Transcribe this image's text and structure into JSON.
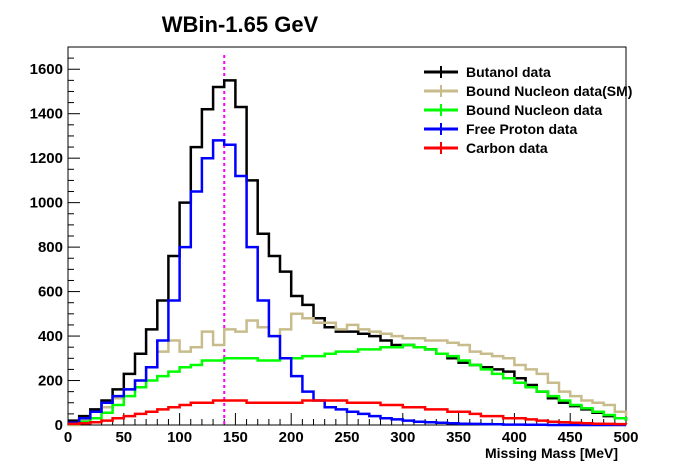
{
  "chart_data": {
    "type": "line",
    "title": "WBin-1.65 GeV",
    "xlabel": "Missing Mass [MeV]",
    "ylabel": "",
    "xlim": [
      0,
      500
    ],
    "ylim": [
      0,
      1700
    ],
    "x_ticks": [
      0,
      50,
      100,
      150,
      200,
      250,
      300,
      350,
      400,
      450,
      500
    ],
    "y_ticks": [
      0,
      200,
      400,
      600,
      800,
      1000,
      1200,
      1400,
      1600
    ],
    "grid": false,
    "legend_position": "top-right",
    "marker_line": {
      "x": 140,
      "color": "#ff00ff"
    },
    "x": [
      0,
      10,
      20,
      30,
      40,
      50,
      60,
      70,
      80,
      90,
      100,
      110,
      120,
      130,
      140,
      150,
      160,
      170,
      180,
      190,
      200,
      210,
      220,
      230,
      240,
      250,
      260,
      270,
      280,
      290,
      300,
      310,
      320,
      330,
      340,
      350,
      360,
      370,
      380,
      390,
      400,
      410,
      420,
      430,
      440,
      450,
      460,
      470,
      480,
      490,
      500
    ],
    "series": [
      {
        "name": "Butanol data",
        "color": "#000000",
        "values": [
          20,
          40,
          70,
          110,
          160,
          230,
          320,
          430,
          560,
          760,
          1000,
          1250,
          1420,
          1520,
          1550,
          1430,
          1100,
          860,
          760,
          690,
          580,
          540,
          480,
          440,
          420,
          420,
          410,
          400,
          380,
          360,
          360,
          350,
          340,
          320,
          300,
          280,
          270,
          260,
          250,
          240,
          210,
          180,
          150,
          120,
          100,
          85,
          70,
          55,
          40,
          30,
          20
        ]
      },
      {
        "name": "Bound Nucleon data(SM)",
        "color": "#c8bc8c",
        "values": [
          0,
          20,
          60,
          80,
          120,
          160,
          200,
          260,
          330,
          380,
          330,
          350,
          420,
          360,
          430,
          420,
          470,
          440,
          400,
          430,
          500,
          480,
          460,
          460,
          430,
          450,
          430,
          420,
          410,
          400,
          390,
          390,
          380,
          380,
          370,
          360,
          330,
          320,
          310,
          300,
          270,
          250,
          230,
          190,
          150,
          130,
          110,
          100,
          90,
          60,
          40
        ]
      },
      {
        "name": "Bound Nucleon data",
        "color": "#00ff00",
        "values": [
          5,
          15,
          30,
          55,
          90,
          130,
          170,
          200,
          220,
          240,
          260,
          270,
          290,
          290,
          300,
          300,
          300,
          290,
          290,
          300,
          300,
          310,
          310,
          320,
          330,
          330,
          340,
          340,
          350,
          350,
          360,
          350,
          340,
          320,
          310,
          290,
          270,
          250,
          230,
          210,
          190,
          170,
          150,
          130,
          110,
          90,
          75,
          60,
          45,
          30,
          20
        ]
      },
      {
        "name": "Free Proton data",
        "color": "#0000ff",
        "values": [
          10,
          30,
          60,
          100,
          130,
          160,
          200,
          260,
          380,
          560,
          800,
          1050,
          1200,
          1280,
          1260,
          1120,
          800,
          560,
          400,
          300,
          220,
          150,
          110,
          80,
          70,
          60,
          50,
          40,
          30,
          25,
          20,
          15,
          12,
          10,
          8,
          6,
          5,
          4,
          3,
          2,
          2,
          1,
          1,
          0,
          0,
          0,
          0,
          0,
          0,
          0,
          0
        ]
      },
      {
        "name": "Carbon data",
        "color": "#ff0000",
        "values": [
          5,
          8,
          12,
          20,
          30,
          40,
          50,
          60,
          70,
          80,
          90,
          100,
          100,
          110,
          110,
          110,
          100,
          100,
          100,
          100,
          100,
          110,
          110,
          110,
          110,
          100,
          100,
          100,
          90,
          90,
          80,
          80,
          70,
          70,
          60,
          60,
          50,
          40,
          40,
          30,
          30,
          25,
          20,
          15,
          12,
          10,
          8,
          6,
          5,
          4,
          3
        ]
      }
    ]
  }
}
